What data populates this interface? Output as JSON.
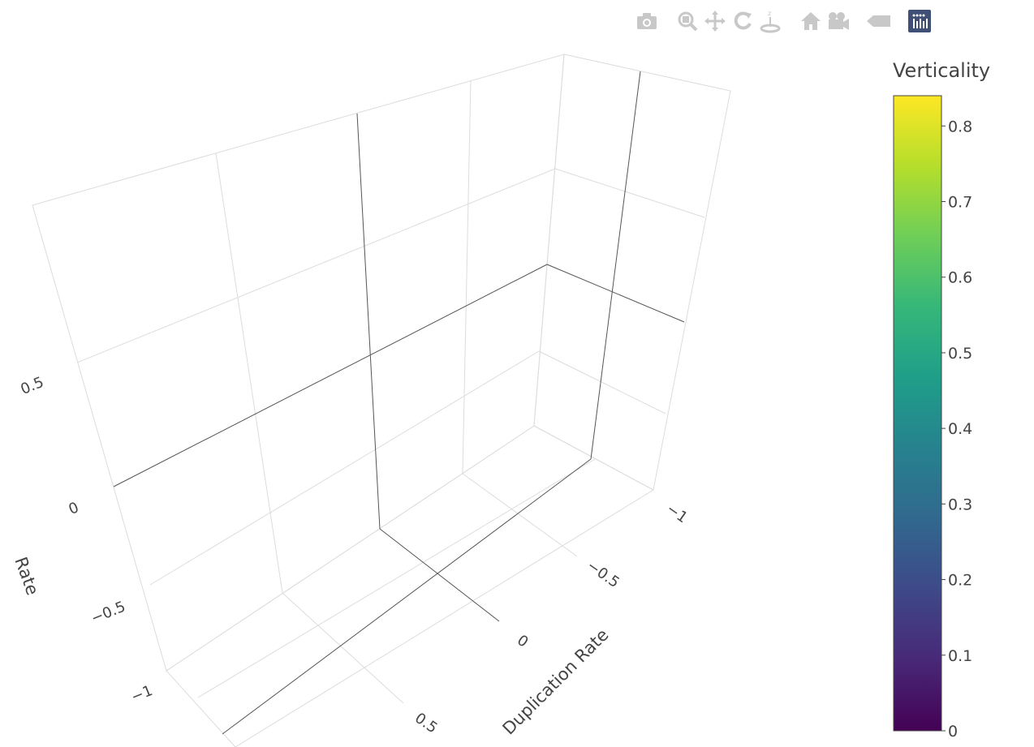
{
  "modebar": {
    "buttons": [
      {
        "name": "camera-icon",
        "group": 1
      },
      {
        "name": "zoom-icon",
        "group": 2
      },
      {
        "name": "pan-icon",
        "group": 2
      },
      {
        "name": "orbit-rotate-icon",
        "group": 2
      },
      {
        "name": "turntable-rotate-icon",
        "group": 2
      },
      {
        "name": "home-icon",
        "group": 3
      },
      {
        "name": "camera-view-icon",
        "group": 3
      },
      {
        "name": "hover-toggle-icon",
        "group": 4
      },
      {
        "name": "plotly-logo-icon",
        "group": 5
      }
    ],
    "colors": {
      "icon": "#c8c8c8",
      "logo": "#3f4f75"
    }
  },
  "chart_data": {
    "type": "scatter3d",
    "series": [],
    "axes": {
      "x": {
        "title": "Duplication Rate",
        "range": [
          -1,
          1
        ],
        "ticks": [
          -1,
          -0.5,
          0,
          0.5
        ],
        "tick_labels": [
          "−1",
          "−0.5",
          "0",
          "0.5"
        ]
      },
      "y": {
        "title": "Rate",
        "range": [
          -1,
          1
        ],
        "ticks": [
          -1,
          -0.5,
          0,
          0.5
        ],
        "tick_labels": [
          "−1",
          "−0.5",
          "0",
          "0.5"
        ]
      },
      "z": {
        "title": "",
        "range": [
          -1,
          1
        ]
      }
    },
    "grid": true,
    "colorbar": {
      "title": "Verticality",
      "range": [
        0,
        0.84
      ],
      "ticks": [
        0,
        0.1,
        0.2,
        0.3,
        0.4,
        0.5,
        0.6,
        0.7,
        0.8
      ],
      "tick_labels": [
        "0",
        "0.1",
        "0.2",
        "0.3",
        "0.4",
        "0.5",
        "0.6",
        "0.7",
        "0.8"
      ],
      "colorscale": [
        "#440154",
        "#482878",
        "#3e4989",
        "#31688e",
        "#26828e",
        "#1f9e89",
        "#35b779",
        "#6ece58",
        "#b5de2b",
        "#fde725"
      ],
      "placement": "right"
    }
  }
}
